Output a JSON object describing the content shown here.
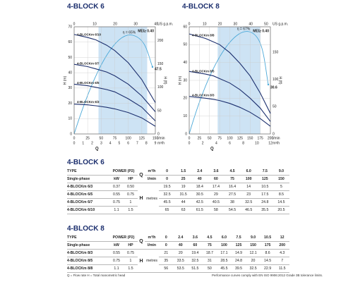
{
  "charts": [
    {
      "title": "4-BLOCK 6",
      "xlim": [
        0,
        150
      ],
      "xticks": [
        0,
        25,
        50,
        75,
        100,
        125,
        150
      ],
      "x_label": "l/min",
      "x2lim": [
        0,
        9
      ],
      "x2ticks": [
        0,
        1,
        2,
        3,
        4,
        5,
        6,
        7,
        8,
        9
      ],
      "x2_label": "m³/h",
      "q_label": "Q",
      "toplim": [
        0,
        39.6
      ],
      "topticks": [
        0,
        10,
        20,
        30,
        40
      ],
      "top_label": "US g.p.m.",
      "ylim": [
        0,
        70
      ],
      "yticks": [
        0,
        10,
        20,
        30,
        40,
        50,
        60,
        70
      ],
      "y_label": "H (m)",
      "y2lim": [
        0,
        230
      ],
      "y2ticks": [
        0,
        50,
        100,
        150,
        200
      ],
      "y2_label": "H (ft)",
      "range": [
        45,
        135
      ],
      "eta_label": "η = 65%",
      "mei_label": "MEI≥ 0.40",
      "end_label": "47.5"
    },
    {
      "title": "4-BLOCK 8",
      "xlim": [
        0,
        200
      ],
      "xticks": [
        0,
        25,
        50,
        75,
        100,
        125,
        150,
        175,
        200
      ],
      "x_label": "l/min",
      "x2lim": [
        0,
        12
      ],
      "x2ticks": [
        0,
        2,
        4,
        6,
        8,
        10,
        12
      ],
      "x2_label": "m³/h",
      "q_label": "Q",
      "toplim": [
        0,
        52.8
      ],
      "topticks": [
        0,
        10,
        20,
        30,
        40,
        50
      ],
      "top_label": "US g.p.m.",
      "ylim": [
        0,
        60
      ],
      "yticks": [
        0,
        10,
        20,
        30,
        40,
        50,
        60
      ],
      "y_label": "H (m)",
      "y2lim": [
        0,
        197
      ],
      "y2ticks": [
        0,
        50,
        100,
        150
      ],
      "y2_label": "H (ft)",
      "range": [
        70,
        175
      ],
      "eta_label": "η = 67%",
      "mei_label": "MEI≥ 0.40",
      "end_label": "30.6"
    }
  ],
  "tables": [
    {
      "title": "4-BLOCK 6",
      "header": {
        "type": "TYPE",
        "power": "POWER (P2)",
        "single": "Single-phase",
        "kw": "kW",
        "hp": "HP",
        "q": "Q",
        "m3h": "m³/h",
        "lmin": "l/min",
        "h": "H",
        "metres": "metres"
      },
      "q_m3h": [
        "0",
        "1.5",
        "2.4",
        "3.6",
        "4.5",
        "6.0",
        "7.5",
        "9.0"
      ],
      "q_lmin": [
        0,
        25,
        40,
        60,
        75,
        100,
        125,
        150
      ],
      "rows": [
        {
          "type": "4-BLOCKm 6/3",
          "kw": "0.37",
          "hp": "0.50",
          "h": [
            19.5,
            19,
            18.4,
            17.4,
            16.4,
            14,
            10.5,
            5
          ]
        },
        {
          "type": "4-BLOCKm 6/5",
          "kw": "0.55",
          "hp": "0.75",
          "h": [
            32.5,
            31.5,
            30.5,
            29,
            27.5,
            23,
            17.5,
            8.5
          ]
        },
        {
          "type": "4-BLOCKm 6/7",
          "kw": "0.75",
          "hp": "1",
          "h": [
            45.5,
            44,
            42.5,
            40.5,
            38,
            32.5,
            24.8,
            14.5
          ]
        },
        {
          "type": "4-BLOCKm 6/10",
          "kw": "1.1",
          "hp": "1.5",
          "h": [
            65,
            63,
            61.5,
            58,
            54.5,
            46.5,
            35.5,
            20.5
          ]
        }
      ]
    },
    {
      "title": "4-BLOCK 8",
      "header": {
        "type": "TYPE",
        "power": "POWER (P2)",
        "single": "Single-phase",
        "kw": "kW",
        "hp": "HP",
        "q": "Q",
        "m3h": "m³/h",
        "lmin": "l/min",
        "h": "H",
        "metres": "metres"
      },
      "q_m3h": [
        "0",
        "2.4",
        "3.6",
        "4.5",
        "6.0",
        "7.5",
        "9.0",
        "10.5",
        "12"
      ],
      "q_lmin": [
        0,
        40,
        60,
        75,
        100,
        125,
        150,
        175,
        200
      ],
      "rows": [
        {
          "type": "4-BLOCKm 8/3",
          "kw": "0.55",
          "hp": "0.75",
          "h": [
            21,
            20,
            19.4,
            18.7,
            17.1,
            14.9,
            12.1,
            8.6,
            4.3
          ]
        },
        {
          "type": "4-BLOCKm 8/5",
          "kw": "0.75",
          "hp": "1",
          "h": [
            35,
            33.5,
            32.5,
            31,
            28.5,
            24.8,
            20,
            14.5,
            7
          ]
        },
        {
          "type": "4-BLOCKm 8/8",
          "kw": "1.1",
          "hp": "1.5",
          "h": [
            56,
            53.5,
            51.5,
            50,
            45.5,
            39.5,
            32.5,
            22.9,
            11.5
          ]
        }
      ]
    }
  ],
  "footer": {
    "left": "Q = Flow rate   H = Total manometric head",
    "right": "Performance curves comply with EN ISO 9906:2012 Grade 3B tolerance limits."
  }
}
